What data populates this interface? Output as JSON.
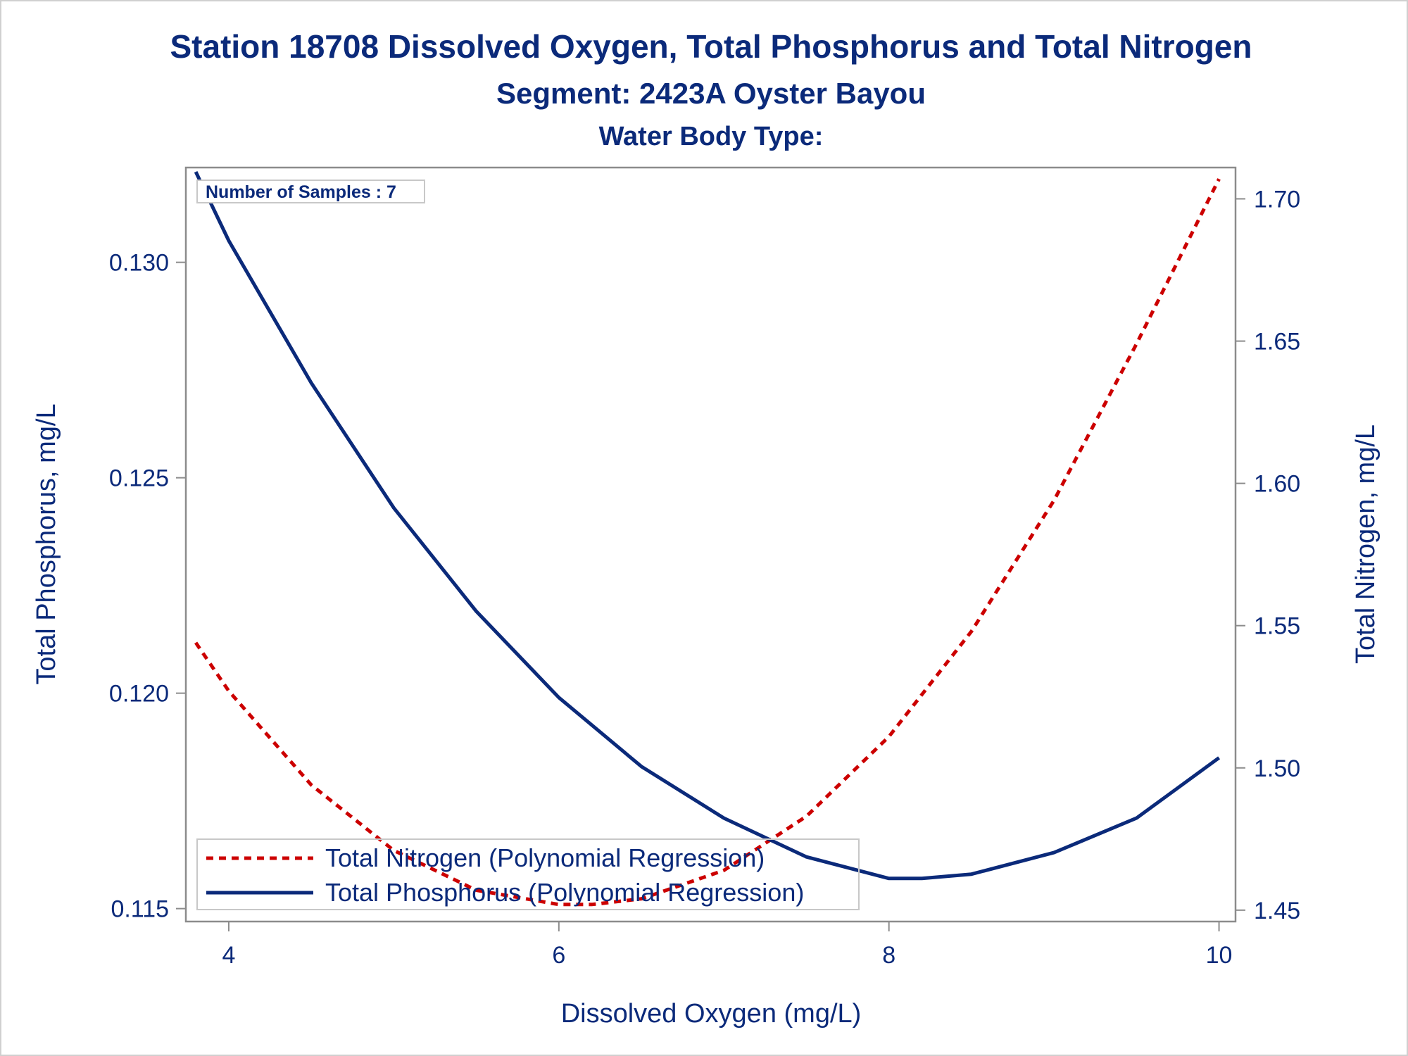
{
  "titles": {
    "line1": "Station 18708  Dissolved Oxygen, Total Phosphorus and Total Nitrogen",
    "line2": "Segment: 2423A  Oyster Bayou",
    "line3": "Water Body Type:"
  },
  "inset": {
    "text": "Number of Samples : 7"
  },
  "colors": {
    "text": "#0b2a7a",
    "phosphorus": "#0b2a7a",
    "nitrogen": "#cc0000",
    "frame": "#8c8c8c"
  },
  "chart_data": {
    "type": "line",
    "xlabel": "Dissolved Oxygen (mg/L)",
    "ylabel": "Total Phosphorus, mg/L",
    "y2label": "Total Nitrogen, mg/L",
    "xlim": [
      3.74,
      10.1
    ],
    "ylim": [
      0.1147,
      0.1322
    ],
    "y2lim": [
      1.446,
      1.711
    ],
    "x_ticks": [
      "4",
      "6",
      "8",
      "10"
    ],
    "y_ticks": [
      "0.115",
      "0.120",
      "0.125",
      "0.130"
    ],
    "y2_ticks": [
      "1.45",
      "1.50",
      "1.55",
      "1.60",
      "1.65",
      "1.70"
    ],
    "legend_position": "bottom-left",
    "grid": false,
    "series": [
      {
        "name": "Total Nitrogen (Polynomial Regression)",
        "axis": "right",
        "style": "dashed",
        "x": [
          3.8,
          4.0,
          4.5,
          5.0,
          5.5,
          6.0,
          6.2,
          6.5,
          7.0,
          7.5,
          8.0,
          8.5,
          9.0,
          9.5,
          10.0
        ],
        "y": [
          1.544,
          1.527,
          1.494,
          1.471,
          1.457,
          1.452,
          1.452,
          1.454,
          1.464,
          1.483,
          1.511,
          1.548,
          1.594,
          1.649,
          1.707
        ]
      },
      {
        "name": "Total Phosphorus (Polynomial Regression)",
        "axis": "left",
        "style": "solid",
        "x": [
          3.8,
          4.0,
          4.5,
          5.0,
          5.5,
          6.0,
          6.5,
          7.0,
          7.5,
          8.0,
          8.2,
          8.5,
          9.0,
          9.5,
          10.0
        ],
        "y": [
          0.1321,
          0.1305,
          0.1272,
          0.1243,
          0.1219,
          0.1199,
          0.1183,
          0.1171,
          0.1162,
          0.1157,
          0.1157,
          0.1158,
          0.1163,
          0.1171,
          0.1185
        ]
      }
    ]
  }
}
